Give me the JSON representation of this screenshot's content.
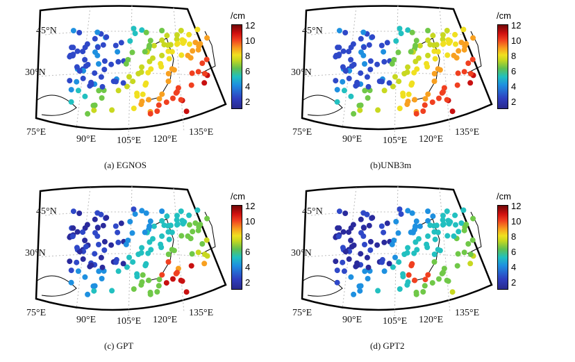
{
  "colorbar": {
    "unit": "/cm",
    "ticks": [
      "12",
      "10",
      "8",
      "6",
      "4",
      "2"
    ]
  },
  "axes": {
    "lat": [
      "45°N",
      "30°N"
    ],
    "lon": [
      "75°E",
      "90°E",
      "105°E",
      "120°E",
      "135°E"
    ]
  },
  "panels": [
    {
      "caption": "(a) EGNOS"
    },
    {
      "caption": "(b)UNB3m"
    },
    {
      "caption": "(c) GPT"
    },
    {
      "caption": "(d) GPT2"
    }
  ]
}
